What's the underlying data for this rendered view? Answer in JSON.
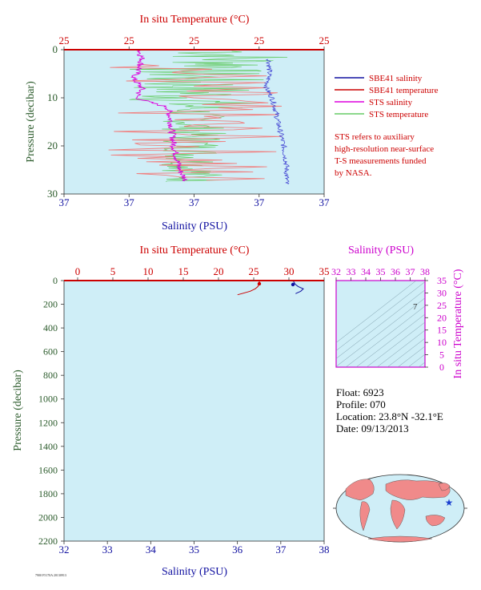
{
  "colors": {
    "plot_bg": "#cfeef7",
    "temperature": "#cc0000",
    "salinity": "#1010a0",
    "pressure": "#2a5a2a",
    "sts_salinity": "#dd00dd",
    "sts_temperature": "#66cc66",
    "sbe_temperature_light": "#f08080",
    "ts_axis": "#cc00cc"
  },
  "top_panel": {
    "top_axis_title": "In situ Temperature (°C)",
    "bottom_axis_title": "Salinity (PSU)",
    "left_axis_title": "Pressure (decibar)",
    "top_ticks": [
      "25",
      "25",
      "25",
      "25",
      "25"
    ],
    "bottom_ticks": [
      "37",
      "37",
      "37",
      "37",
      "37"
    ],
    "left_ticks": [
      "0",
      "10",
      "20",
      "30"
    ]
  },
  "legend": {
    "items": [
      {
        "label": "SBE41 salinity",
        "color": "#1010a0"
      },
      {
        "label": "SBE41 temperature",
        "color": "#cc0000"
      },
      {
        "label": "STS salinity",
        "color": "#dd00dd"
      },
      {
        "label": "STS temperature",
        "color": "#66cc66"
      }
    ],
    "note_lines": [
      "STS refers to auxiliary",
      "high-resolution near-surface",
      "T-S measurements funded",
      "by NASA."
    ]
  },
  "bottom_panel": {
    "top_axis_title": "In situ Temperature (°C)",
    "bottom_axis_title": "Salinity (PSU)",
    "left_axis_title": "Pressure (decibar)",
    "top_ticks": [
      "0",
      "5",
      "10",
      "15",
      "20",
      "25",
      "30",
      "35"
    ],
    "bottom_ticks": [
      "32",
      "33",
      "34",
      "35",
      "36",
      "37",
      "38"
    ],
    "left_ticks": [
      "0",
      "200",
      "400",
      "600",
      "800",
      "1000",
      "1200",
      "1400",
      "1600",
      "1800",
      "2000",
      "2200"
    ]
  },
  "ts_panel": {
    "top_axis_title": "Salinity (PSU)",
    "right_axis_title": "In situ Temperature (°C)",
    "top_ticks": [
      "32",
      "33",
      "34",
      "35",
      "36",
      "37",
      "38"
    ],
    "right_ticks": [
      "0",
      "5",
      "10",
      "15",
      "20",
      "25",
      "30",
      "35"
    ],
    "density_label": "7"
  },
  "float_info": {
    "float": "Float:  6923",
    "profile": "Profile:  070",
    "location": "Location:  23.8°N  -32.1°E",
    "date": "Date:  09/13/2013"
  },
  "footer_tag": "7900 F5170A 20130913",
  "chart_data": [
    {
      "type": "line",
      "title": "",
      "xlabel": "Salinity (PSU)",
      "x2label": "In situ Temperature (°C)",
      "ylabel": "Pressure (decibar)",
      "ylim": [
        30,
        0
      ],
      "series": [
        {
          "name": "SBE41 salinity",
          "pressure": [
            2,
            5,
            8,
            10,
            12,
            15,
            20,
            24,
            28
          ],
          "values": [
            37.31,
            37.31,
            37.3,
            37.32,
            37.33,
            37.34,
            37.36,
            37.37,
            37.37
          ]
        },
        {
          "name": "SBE41 temperature",
          "pressure": [
            2,
            5,
            8,
            10,
            15,
            20,
            25,
            28
          ],
          "values": [
            25.2,
            25.2,
            25.2,
            25.2,
            25.2,
            25.2,
            25.2,
            25.2
          ]
        },
        {
          "name": "STS salinity",
          "pressure": [
            0,
            2,
            4,
            6,
            8,
            10,
            11,
            12,
            15,
            20,
            25,
            27
          ],
          "values": [
            36.86,
            36.87,
            36.86,
            36.84,
            36.87,
            36.85,
            36.9,
            36.96,
            36.97,
            36.98,
            37.0,
            37.02
          ]
        },
        {
          "name": "STS temperature",
          "pressure": [
            0,
            2,
            5,
            8,
            10,
            12,
            15,
            20,
            25,
            28
          ],
          "values": [
            25.2,
            25.2,
            25.2,
            25.2,
            25.2,
            25.2,
            25.2,
            25.2,
            25.2,
            25.2
          ]
        }
      ]
    },
    {
      "type": "line",
      "title": "",
      "xlabel": "Salinity (PSU)",
      "x2label": "In situ Temperature (°C)",
      "ylabel": "Pressure (decibar)",
      "xlim": [
        32,
        38
      ],
      "x2lim": [
        0,
        35
      ],
      "ylim": [
        2200,
        0
      ],
      "series": [
        {
          "name": "SBE41 temperature",
          "axis": "top",
          "pressure": [
            0,
            10,
            30,
            50,
            70,
            90,
            100,
            110,
            120
          ],
          "values": [
            25.8,
            25.8,
            25.7,
            25.6,
            25.2,
            24.5,
            23.9,
            23.3,
            22.7
          ]
        },
        {
          "name": "SBE41 salinity",
          "axis": "bottom",
          "pressure": [
            0,
            10,
            30,
            50,
            70,
            90,
            100,
            110
          ],
          "values": [
            37.28,
            37.3,
            37.33,
            37.4,
            37.52,
            37.46,
            37.4,
            37.34
          ]
        }
      ]
    },
    {
      "type": "scatter",
      "title": "",
      "xlabel": "Salinity (PSU)",
      "ylabel": "In situ Temperature (°C)",
      "xlim": [
        32,
        38
      ],
      "ylim": [
        0,
        35
      ]
    }
  ]
}
